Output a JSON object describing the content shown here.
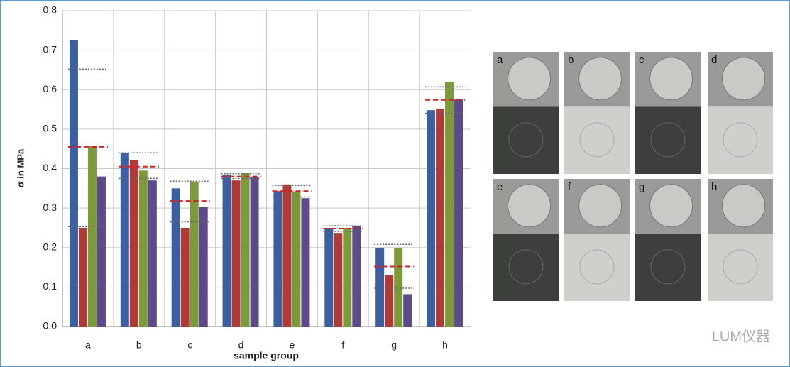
{
  "chart_data": {
    "type": "bar",
    "y_label": "σ in MPa",
    "x_label": "sample group",
    "categories": [
      "a",
      "b",
      "c",
      "d",
      "e",
      "f",
      "g",
      "h"
    ],
    "series": [
      {
        "color": "#3b5fa0",
        "values": [
          0.725,
          0.44,
          0.35,
          0.383,
          0.343,
          0.25,
          0.198,
          0.548
        ]
      },
      {
        "color": "#b03a37",
        "values": [
          0.25,
          0.422,
          0.25,
          0.37,
          0.36,
          0.237,
          0.13,
          0.552
        ]
      },
      {
        "color": "#7b9a3b",
        "values": [
          0.457,
          0.395,
          0.367,
          0.388,
          0.342,
          0.25,
          0.198,
          0.62
        ]
      },
      {
        "color": "#5d4a8a",
        "values": [
          0.38,
          0.37,
          0.303,
          0.378,
          0.325,
          0.255,
          0.082,
          0.575
        ]
      }
    ],
    "mean": {
      "color": "#d42020",
      "values": [
        0.455,
        0.405,
        0.318,
        0.38,
        0.343,
        0.248,
        0.152,
        0.574
      ]
    },
    "sd_upper": {
      "color": "#666666",
      "values": [
        0.652,
        0.44,
        0.368,
        0.387,
        0.357,
        0.255,
        0.208,
        0.607
      ]
    },
    "sd_lower": {
      "color": "#666666",
      "values": [
        0.253,
        0.375,
        0.265,
        0.375,
        0.328,
        0.241,
        0.097,
        0.54
      ]
    },
    "ylim": [
      0,
      0.8
    ],
    "yticks": [
      {
        "value": 0,
        "label": "0.0"
      },
      0.1,
      0.2,
      0.3,
      0.4,
      0.5,
      0.6,
      0.7,
      0.8
    ],
    "grid": true
  },
  "photos": {
    "labels": [
      "a",
      "b",
      "c",
      "d",
      "e",
      "f",
      "g",
      "h"
    ]
  },
  "watermark": "LUM仪器"
}
